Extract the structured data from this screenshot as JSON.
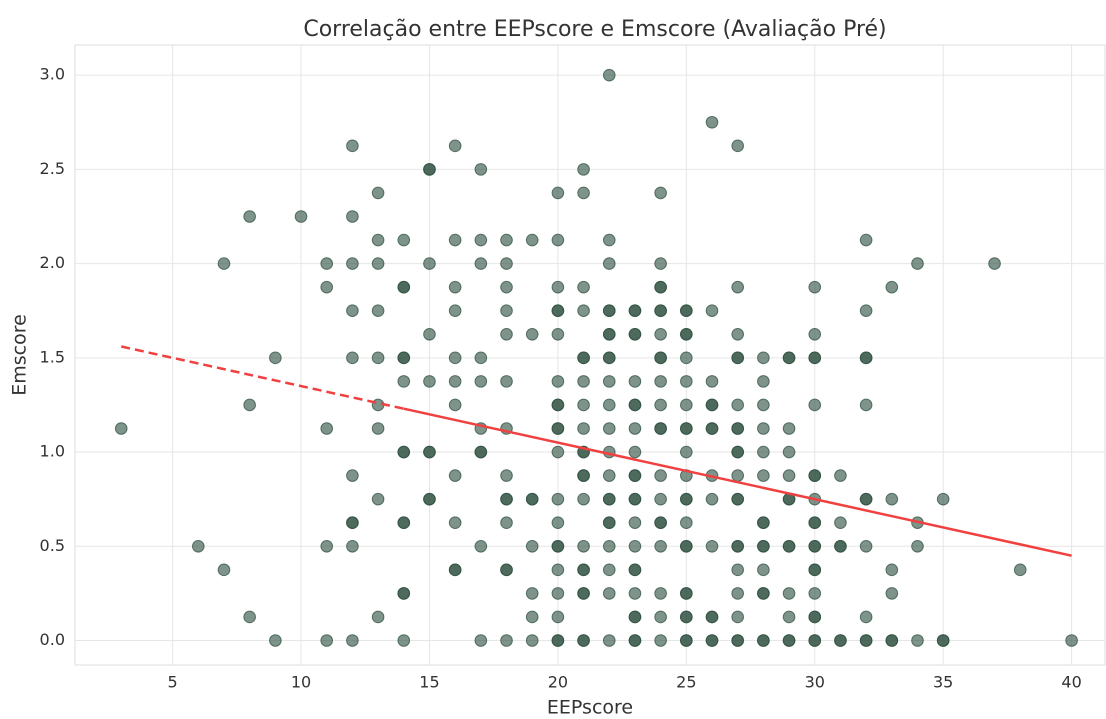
{
  "chart_data": {
    "type": "scatter",
    "title": "Correlação entre EEPscore e Emscore (Avaliação Pré)",
    "x_label": "EEPscore",
    "y_label": "Emscore",
    "color": "#2f5040",
    "grid": true,
    "xlim": [
      1.2,
      41.3
    ],
    "ylim": [
      -0.13,
      3.16
    ],
    "xticks": [
      5,
      10,
      15,
      20,
      25,
      30,
      35,
      40
    ],
    "yticks": [
      {
        "value": 0,
        "label": "0.0"
      },
      0.5,
      {
        "value": 1,
        "label": "1.0"
      },
      1.5,
      {
        "value": 2,
        "label": "2.0"
      },
      2.5,
      {
        "value": 3,
        "label": "3.0"
      }
    ],
    "x": [
      3,
      6,
      7,
      7,
      8,
      8,
      8,
      9,
      9,
      10,
      11,
      11,
      11,
      11,
      11,
      12,
      12,
      12,
      12,
      12,
      12,
      12,
      12,
      12,
      12,
      13,
      13,
      13,
      13,
      13,
      13,
      13,
      13,
      13,
      14,
      14,
      14,
      14,
      14,
      14,
      14,
      14,
      14,
      14,
      14,
      14,
      14,
      15,
      15,
      15,
      15,
      15,
      15,
      15,
      15,
      15,
      16,
      16,
      16,
      16,
      16,
      16,
      16,
      16,
      16,
      16,
      16,
      17,
      17,
      17,
      17,
      17,
      17,
      17,
      17,
      17,
      17,
      18,
      18,
      18,
      18,
      18,
      18,
      18,
      18,
      18,
      18,
      18,
      18,
      18,
      18,
      19,
      19,
      19,
      19,
      19,
      19,
      19,
      19,
      20,
      20,
      20,
      20,
      20,
      20,
      20,
      20,
      20,
      20,
      20,
      20,
      20,
      20,
      20,
      20,
      20,
      20,
      20,
      20,
      20,
      21,
      21,
      21,
      21,
      21,
      21,
      21,
      21,
      21,
      21,
      21,
      21,
      21,
      21,
      21,
      21,
      21,
      21,
      21,
      21,
      21,
      22,
      22,
      22,
      22,
      22,
      22,
      22,
      22,
      22,
      22,
      22,
      22,
      22,
      22,
      22,
      22,
      22,
      22,
      22,
      22,
      22,
      22,
      23,
      23,
      23,
      23,
      23,
      23,
      23,
      23,
      23,
      23,
      23,
      23,
      23,
      23,
      23,
      23,
      23,
      23,
      23,
      23,
      23,
      23,
      24,
      24,
      24,
      24,
      24,
      24,
      24,
      24,
      24,
      24,
      24,
      24,
      24,
      24,
      24,
      24,
      24,
      24,
      24,
      24,
      24,
      25,
      25,
      25,
      25,
      25,
      25,
      25,
      25,
      25,
      25,
      25,
      25,
      25,
      25,
      25,
      25,
      25,
      25,
      25,
      25,
      25,
      25,
      26,
      26,
      26,
      26,
      26,
      26,
      26,
      26,
      26,
      26,
      26,
      26,
      26,
      26,
      27,
      27,
      27,
      27,
      27,
      27,
      27,
      27,
      27,
      27,
      27,
      27,
      27,
      27,
      27,
      27,
      27,
      27,
      27,
      27,
      28,
      28,
      28,
      28,
      28,
      28,
      28,
      28,
      28,
      28,
      28,
      28,
      28,
      28,
      28,
      29,
      29,
      29,
      29,
      29,
      29,
      29,
      29,
      29,
      29,
      29,
      29,
      29,
      30,
      30,
      30,
      30,
      30,
      30,
      30,
      30,
      30,
      30,
      30,
      30,
      30,
      30,
      30,
      30,
      30,
      30,
      30,
      31,
      31,
      31,
      31,
      31,
      31,
      32,
      32,
      32,
      32,
      32,
      32,
      32,
      32,
      32,
      32,
      32,
      33,
      33,
      33,
      33,
      33,
      33,
      34,
      34,
      34,
      34,
      35,
      35,
      35,
      37,
      38,
      40
    ],
    "values": [
      1.125,
      0.5,
      2,
      0.375,
      2.25,
      1.25,
      0.125,
      1.5,
      0,
      2.25,
      2,
      1.875,
      1.125,
      0.5,
      0,
      2.625,
      2.25,
      2,
      1.75,
      1.5,
      0.875,
      0.625,
      0.625,
      0.5,
      0,
      2.375,
      2.125,
      2,
      1.75,
      1.5,
      1.25,
      1.125,
      0.75,
      0.125,
      2.125,
      1.875,
      1.875,
      1.5,
      1.5,
      1.375,
      1,
      1,
      0.625,
      0.625,
      0.25,
      0.25,
      0,
      2.5,
      2.5,
      2,
      1.625,
      1.375,
      1,
      1,
      0.75,
      0.75,
      2.625,
      2.125,
      1.875,
      1.75,
      1.5,
      1.375,
      1.25,
      0.875,
      0.625,
      0.375,
      0.375,
      2.5,
      2.125,
      2,
      1.5,
      1.375,
      1.125,
      1,
      1,
      0.5,
      0,
      2.125,
      2,
      1.875,
      1.75,
      1.625,
      1.375,
      1.125,
      0.875,
      0.75,
      0.75,
      0.625,
      0.375,
      0.375,
      0,
      2.125,
      1.625,
      0.75,
      0.75,
      0.5,
      0.25,
      0.125,
      0,
      2.375,
      2.125,
      1.875,
      1.75,
      1.75,
      1.625,
      1.375,
      1.25,
      1.25,
      1.125,
      1.125,
      1,
      0.75,
      0.625,
      0.5,
      0.5,
      0.375,
      0.25,
      0.125,
      0,
      0,
      2.5,
      2.375,
      1.875,
      1.75,
      1.5,
      1.5,
      1.375,
      1.25,
      1.125,
      1,
      1,
      0.875,
      0.875,
      0.75,
      0.5,
      0.375,
      0.375,
      0.25,
      0.25,
      0,
      0,
      3,
      2.125,
      2,
      1.75,
      1.75,
      1.625,
      1.625,
      1.5,
      1.5,
      1.375,
      1.25,
      1.125,
      1,
      0.875,
      0.75,
      0.75,
      0.625,
      0.625,
      0.5,
      0.375,
      0.25,
      0,
      1.75,
      1.75,
      1.625,
      1.625,
      1.375,
      1.25,
      1.25,
      1.125,
      1,
      0.875,
      0.875,
      0.75,
      0.75,
      0.625,
      0.5,
      0.375,
      0.375,
      0.25,
      0.125,
      0.125,
      0,
      0,
      2.375,
      2,
      1.875,
      1.875,
      1.75,
      1.75,
      1.625,
      1.5,
      1.5,
      1.375,
      1.25,
      1.125,
      1.125,
      0.875,
      0.75,
      0.625,
      0.625,
      0.5,
      0.25,
      0.125,
      0,
      1.75,
      1.75,
      1.625,
      1.625,
      1.5,
      1.375,
      1.25,
      1.125,
      1.125,
      1,
      0.875,
      0.75,
      0.75,
      0.625,
      0.5,
      0.5,
      0.25,
      0.25,
      0.125,
      0.125,
      0,
      0,
      2.75,
      1.75,
      1.375,
      1.25,
      1.25,
      1.125,
      1.125,
      0.875,
      0.75,
      0.5,
      0.125,
      0.125,
      0,
      0,
      2.625,
      1.875,
      1.625,
      1.5,
      1.5,
      1.25,
      1.125,
      1.125,
      1,
      1,
      0.875,
      0.75,
      0.75,
      0.5,
      0.5,
      0.375,
      0.25,
      0.125,
      0,
      0,
      1.5,
      1.375,
      1.25,
      1.125,
      1,
      0.875,
      0.625,
      0.625,
      0.5,
      0.5,
      0.375,
      0.25,
      0.25,
      0,
      0,
      1.5,
      1.5,
      1.125,
      1,
      0.875,
      0.75,
      0.75,
      0.5,
      0.5,
      0.25,
      0.125,
      0,
      0,
      1.875,
      1.625,
      1.5,
      1.5,
      1.25,
      0.875,
      0.875,
      0.75,
      0.625,
      0.625,
      0.5,
      0.5,
      0.375,
      0.375,
      0.25,
      0.125,
      0.125,
      0,
      0,
      0.875,
      0.625,
      0.5,
      0.5,
      0,
      0,
      2.125,
      1.75,
      1.5,
      1.5,
      1.25,
      0.75,
      0.75,
      0.5,
      0.125,
      0,
      0,
      1.875,
      0.75,
      0.375,
      0.25,
      0,
      0,
      2,
      0.625,
      0.5,
      0,
      0.75,
      0,
      0,
      2,
      0.375,
      0
    ],
    "lines": [
      {
        "x": [
          3,
          14
        ],
        "values": [
          1.56,
          1.23
        ],
        "color": "#f04040",
        "dashed": true
      },
      {
        "x": [
          14,
          40
        ],
        "values": [
          1.23,
          0.45
        ],
        "color": "#f04040",
        "dashed": false
      }
    ]
  }
}
